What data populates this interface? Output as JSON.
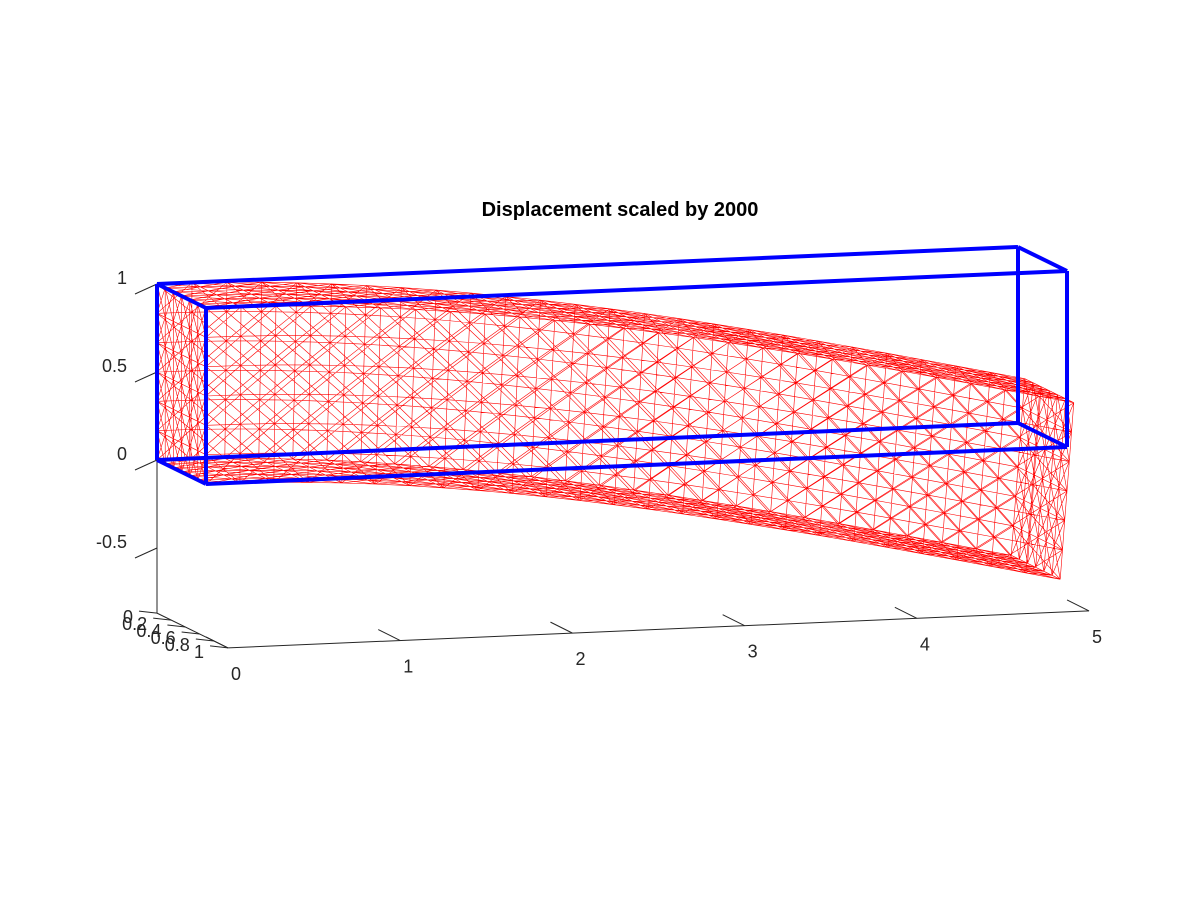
{
  "chart_data": {
    "type": "3d-mesh",
    "title": "Displacement scaled by 2000",
    "x_ticks": [
      "0",
      "1",
      "2",
      "3",
      "4",
      "5"
    ],
    "y_ticks": [
      "0",
      "0.2",
      "0.4",
      "0.6",
      "0.8",
      "1"
    ],
    "z_ticks": [
      "-0.5",
      "0",
      "0.5",
      "1"
    ],
    "xlim": [
      0,
      5
    ],
    "ylim": [
      0,
      1
    ],
    "zlim": [
      -0.75,
      1
    ],
    "undeformed_box": {
      "x": [
        0,
        5
      ],
      "y": [
        0,
        1
      ],
      "z": [
        0,
        1
      ]
    },
    "deformed_tip_deflection_z": -0.75,
    "mesh": {
      "nx": 25,
      "ny": 6,
      "nz": 6
    },
    "colors": {
      "mesh": "#ff0000",
      "box": "#0000ff",
      "axis": "#262626"
    }
  }
}
